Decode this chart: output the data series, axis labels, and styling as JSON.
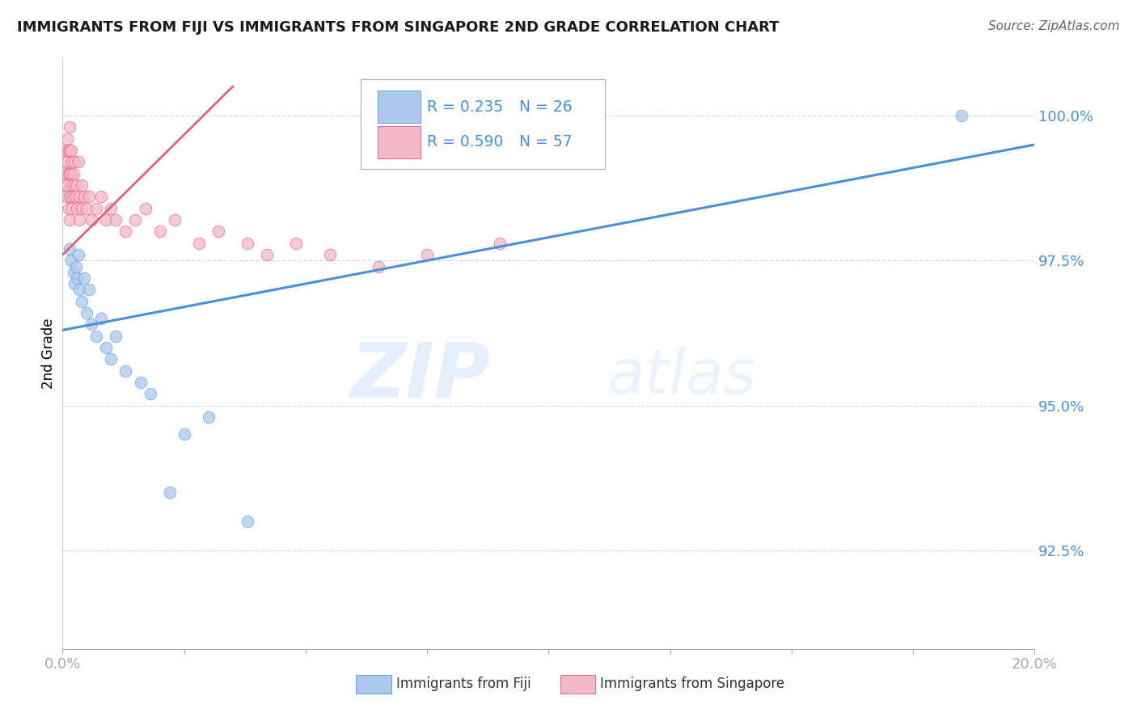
{
  "title": "IMMIGRANTS FROM FIJI VS IMMIGRANTS FROM SINGAPORE 2ND GRADE CORRELATION CHART",
  "source": "Source: ZipAtlas.com",
  "ylabel": "2nd Grade",
  "legend_fiji_r": "R = 0.235",
  "legend_fiji_n": "N = 26",
  "legend_singapore_r": "R = 0.590",
  "legend_singapore_n": "N = 57",
  "watermark_zip": "ZIP",
  "watermark_atlas": "atlas",
  "fiji_color": "#adc8ef",
  "fiji_edge_color": "#6aaad4",
  "fiji_line_color": "#4a90d9",
  "singapore_color": "#f5b8c8",
  "singapore_edge_color": "#e07090",
  "singapore_line_color": "#e06080",
  "legend_text_color": "#4a90d9",
  "axis_label_color": "#4a90d9",
  "grid_color": "#c8d8ec",
  "ytick_vals": [
    92.5,
    95.0,
    97.5,
    100.0
  ],
  "xlim": [
    0.0,
    20.0
  ],
  "ylim": [
    90.8,
    101.0
  ],
  "fiji_scatter_x": [
    0.15,
    0.18,
    0.22,
    0.25,
    0.28,
    0.3,
    0.32,
    0.35,
    0.4,
    0.45,
    0.5,
    0.55,
    0.6,
    0.7,
    0.8,
    0.9,
    1.0,
    1.1,
    1.3,
    1.6,
    1.8,
    2.5,
    3.0,
    2.2,
    3.8,
    18.5
  ],
  "fiji_scatter_y": [
    97.7,
    97.5,
    97.3,
    97.1,
    97.4,
    97.2,
    97.6,
    97.0,
    96.8,
    97.2,
    96.6,
    97.0,
    96.4,
    96.2,
    96.5,
    96.0,
    95.8,
    96.2,
    95.6,
    95.4,
    95.2,
    94.5,
    94.8,
    93.5,
    93.0,
    100.0
  ],
  "singapore_scatter_x": [
    0.05,
    0.05,
    0.07,
    0.08,
    0.08,
    0.1,
    0.1,
    0.1,
    0.12,
    0.12,
    0.12,
    0.15,
    0.15,
    0.15,
    0.15,
    0.15,
    0.18,
    0.18,
    0.18,
    0.2,
    0.2,
    0.2,
    0.22,
    0.22,
    0.25,
    0.25,
    0.28,
    0.3,
    0.3,
    0.32,
    0.35,
    0.35,
    0.4,
    0.4,
    0.45,
    0.5,
    0.55,
    0.6,
    0.7,
    0.8,
    0.9,
    1.0,
    1.1,
    1.3,
    1.5,
    1.7,
    2.0,
    2.3,
    2.8,
    3.2,
    3.8,
    4.2,
    4.8,
    5.5,
    6.5,
    7.5,
    9.0
  ],
  "singapore_scatter_y": [
    98.8,
    99.2,
    99.0,
    98.6,
    99.4,
    98.8,
    99.2,
    99.6,
    98.4,
    99.0,
    99.4,
    98.2,
    98.6,
    99.0,
    99.4,
    99.8,
    98.6,
    99.0,
    99.4,
    98.4,
    98.8,
    99.2,
    98.6,
    99.0,
    98.8,
    99.2,
    98.6,
    98.4,
    98.8,
    99.2,
    98.2,
    98.6,
    98.4,
    98.8,
    98.6,
    98.4,
    98.6,
    98.2,
    98.4,
    98.6,
    98.2,
    98.4,
    98.2,
    98.0,
    98.2,
    98.4,
    98.0,
    98.2,
    97.8,
    98.0,
    97.8,
    97.6,
    97.8,
    97.6,
    97.4,
    97.6,
    97.8
  ],
  "fiji_line_x": [
    0.0,
    20.0
  ],
  "fiji_line_y": [
    96.3,
    99.5
  ],
  "singapore_line_x": [
    0.0,
    3.5
  ],
  "singapore_line_y": [
    97.6,
    100.5
  ],
  "bottom_legend_fiji": "Immigrants from Fiji",
  "bottom_legend_singapore": "Immigrants from Singapore"
}
